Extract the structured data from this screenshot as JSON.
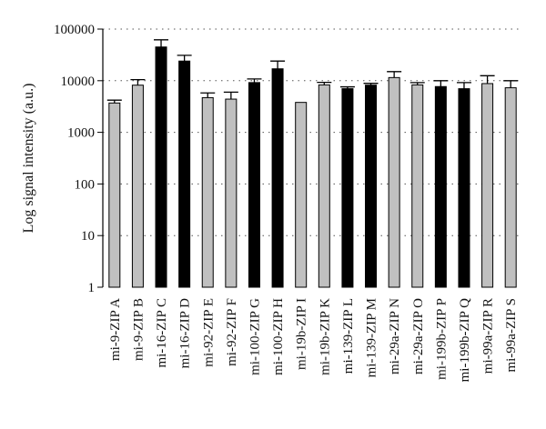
{
  "chart_data": {
    "type": "bar",
    "title": "",
    "xlabel": "",
    "ylabel": "Log signal intensity (a.u.)",
    "yscale": "log",
    "ylim": [
      1,
      100000
    ],
    "yticks": [
      1,
      10,
      100,
      1000,
      10000,
      100000
    ],
    "ytick_labels": [
      "1",
      "10",
      "100",
      "1000",
      "10000",
      "100000"
    ],
    "grid": "dotted horizontal at decades",
    "legend": "none",
    "colors": {
      "gray": "#c0c0c0",
      "black": "#000000",
      "edge": "#000000"
    },
    "categories": [
      "mi-9-ZIP A",
      "mi-9-ZIP B",
      "mi-16-ZIP C",
      "mi-16-ZIP D",
      "mi-92-ZIP E",
      "mi-92-ZIP F",
      "mi-100-ZIP G",
      "mi-100-ZIP H",
      "mi-19b-ZIP I",
      "mi-19b-ZIP K",
      "mi-139-ZIP L",
      "mi-139-ZIP M",
      "mi-29a-ZIP N",
      "mi-29a-ZIP O",
      "mi-199b-ZIP P",
      "mi-199b-ZIP Q",
      "mi-99a-ZIP R",
      "mi-99a-ZIP S"
    ],
    "values": [
      3700,
      8200,
      45000,
      24000,
      4700,
      4400,
      9200,
      17000,
      3800,
      8300,
      7000,
      8200,
      11500,
      8300,
      7700,
      7000,
      8800,
      7300
    ],
    "error_upper": [
      4200,
      10500,
      62000,
      31000,
      5800,
      6000,
      10800,
      24000,
      3800,
      9300,
      7600,
      8900,
      15000,
      9200,
      10000,
      9200,
      12500,
      10000
    ],
    "bar_colors": [
      "gray",
      "gray",
      "black",
      "black",
      "gray",
      "gray",
      "black",
      "black",
      "gray",
      "gray",
      "black",
      "black",
      "gray",
      "gray",
      "black",
      "black",
      "gray",
      "gray"
    ]
  }
}
